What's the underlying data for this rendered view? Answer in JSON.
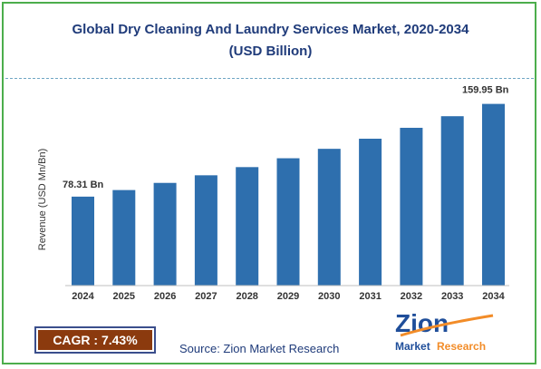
{
  "header": {
    "title_line1": "Global Dry Cleaning And Laundry Services Market, 2020-2034",
    "title_line2": "(USD Billion)"
  },
  "chart_data": {
    "type": "bar",
    "title": "Global Dry Cleaning And Laundry Services Market, 2020-2034 (USD Billion)",
    "xlabel": "",
    "ylabel": "Revenue (USD Mn/Bn)",
    "categories": [
      "2024",
      "2025",
      "2026",
      "2027",
      "2028",
      "2029",
      "2030",
      "2031",
      "2032",
      "2033",
      "2034"
    ],
    "values": [
      78.31,
      84.1,
      90.4,
      97.1,
      104.3,
      112.1,
      120.4,
      129.3,
      138.9,
      149.1,
      159.95
    ],
    "ylim": [
      0,
      170
    ],
    "grid": false,
    "bar_color": "#2e6fae",
    "data_labels": {
      "first": "78.31 Bn",
      "last": "159.95 Bn"
    }
  },
  "cagr": {
    "label": "CAGR : 7.43%",
    "color": "#8b3a0e"
  },
  "source": "Source: Zion Market Research",
  "logo": {
    "word": "Zion",
    "sub1": "Market",
    "sub2": "Research",
    "colors": {
      "blue": "#1f4e9a",
      "orange": "#f28c28"
    }
  }
}
